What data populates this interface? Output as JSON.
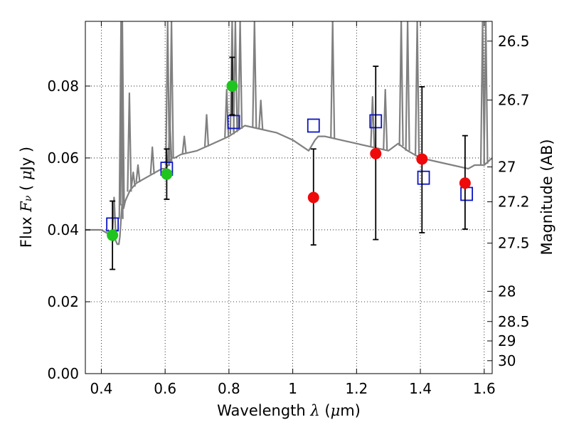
{
  "chart_data": {
    "type": "scatter",
    "xlabel": "Wavelength  λ (μm)",
    "xlabel_parts": [
      "Wavelength  ",
      "λ",
      " (",
      "μ",
      "m)"
    ],
    "ylabel": "Flux  Fν  ( μJy )",
    "ylabel_parts": [
      "Flux  ",
      "F",
      "ν",
      "  ( ",
      "μ",
      "Jy )"
    ],
    "y2label": "Magnitude (AB)",
    "xlim": [
      0.35,
      1.625
    ],
    "ylim": [
      0,
      0.098
    ],
    "grid": true,
    "colors": {
      "model": "#808080",
      "green": "#1fc41f",
      "red": "#ee0a0a",
      "box": "#0b14c2",
      "errorbar": "#000000"
    },
    "x_ticks": [
      {
        "value": 0.4,
        "label": "0.4"
      },
      {
        "value": 0.6,
        "label": "0.6"
      },
      {
        "value": 0.8,
        "label": "0.8"
      },
      {
        "value": 1.0,
        "label": "1"
      },
      {
        "value": 1.2,
        "label": "1.2"
      },
      {
        "value": 1.4,
        "label": "1.4"
      },
      {
        "value": 1.6,
        "label": "1.6"
      }
    ],
    "y_ticks": [
      {
        "value": 0.0,
        "label": "0.00"
      },
      {
        "value": 0.02,
        "label": "0.02"
      },
      {
        "value": 0.04,
        "label": "0.04"
      },
      {
        "value": 0.06,
        "label": "0.06"
      },
      {
        "value": 0.08,
        "label": "0.08"
      }
    ],
    "magnitude_ticks": [
      {
        "value": 0.0925,
        "label": "26.5"
      },
      {
        "value": 0.0761,
        "label": "26.7"
      },
      {
        "value": 0.0575,
        "label": "27"
      },
      {
        "value": 0.0478,
        "label": "27.2"
      },
      {
        "value": 0.0363,
        "label": "27.5"
      },
      {
        "value": 0.0229,
        "label": "28"
      },
      {
        "value": 0.0145,
        "label": "28.5"
      },
      {
        "value": 0.0091,
        "label": "29"
      },
      {
        "value": 0.0036,
        "label": "30"
      }
    ],
    "series": [
      {
        "name": "model spectrum",
        "style": "line",
        "x": [
          0.35,
          0.4,
          0.42,
          0.438,
          0.44,
          0.45,
          0.455,
          0.458,
          0.462,
          0.465,
          0.47,
          0.475,
          0.48,
          0.49,
          0.5,
          0.51,
          0.53,
          0.55,
          0.57,
          0.59,
          0.6,
          0.61,
          0.62,
          0.63,
          0.65,
          0.7,
          0.75,
          0.8,
          0.85,
          0.9,
          0.95,
          1.0,
          1.05,
          1.07,
          1.08,
          1.1,
          1.15,
          1.2,
          1.25,
          1.3,
          1.33,
          1.36,
          1.4,
          1.45,
          1.5,
          1.55,
          1.57,
          1.6,
          1.625
        ],
        "y": [
          0.04,
          0.04,
          0.039,
          0.037,
          0.038,
          0.036,
          0.036,
          0.038,
          0.043,
          0.047,
          0.046,
          0.048,
          0.049,
          0.051,
          0.052,
          0.053,
          0.054,
          0.055,
          0.056,
          0.057,
          0.057,
          0.058,
          0.06,
          0.06,
          0.061,
          0.062,
          0.064,
          0.066,
          0.069,
          0.068,
          0.067,
          0.065,
          0.062,
          0.065,
          0.066,
          0.066,
          0.065,
          0.064,
          0.063,
          0.062,
          0.064,
          0.062,
          0.06,
          0.059,
          0.058,
          0.057,
          0.058,
          0.058,
          0.06
        ],
        "spikes": [
          {
            "x": 0.44,
            "y": 0.049
          },
          {
            "x": 0.462,
            "y": 0.098
          },
          {
            "x": 0.466,
            "y": 0.098
          },
          {
            "x": 0.488,
            "y": 0.078
          },
          {
            "x": 0.5,
            "y": 0.056
          },
          {
            "x": 0.515,
            "y": 0.058
          },
          {
            "x": 0.56,
            "y": 0.063
          },
          {
            "x": 0.608,
            "y": 0.098
          },
          {
            "x": 0.615,
            "y": 0.07
          },
          {
            "x": 0.62,
            "y": 0.098
          },
          {
            "x": 0.66,
            "y": 0.066
          },
          {
            "x": 0.73,
            "y": 0.072
          },
          {
            "x": 0.793,
            "y": 0.079
          },
          {
            "x": 0.81,
            "y": 0.098
          },
          {
            "x": 0.82,
            "y": 0.098
          },
          {
            "x": 0.835,
            "y": 0.098
          },
          {
            "x": 0.88,
            "y": 0.098
          },
          {
            "x": 0.9,
            "y": 0.076
          },
          {
            "x": 1.125,
            "y": 0.098
          },
          {
            "x": 1.25,
            "y": 0.077
          },
          {
            "x": 1.29,
            "y": 0.079
          },
          {
            "x": 1.34,
            "y": 0.098
          },
          {
            "x": 1.36,
            "y": 0.098
          },
          {
            "x": 1.39,
            "y": 0.098
          },
          {
            "x": 1.595,
            "y": 0.098
          },
          {
            "x": 1.605,
            "y": 0.098
          }
        ]
      },
      {
        "name": "model photometry",
        "style": "open-square",
        "x": [
          0.435,
          0.605,
          0.815,
          1.065,
          1.26,
          1.41,
          1.545
        ],
        "y": [
          0.0415,
          0.057,
          0.07,
          0.069,
          0.0702,
          0.0545,
          0.05
        ]
      },
      {
        "name": "observed (green)",
        "style": "filled-circle",
        "x": [
          0.435,
          0.605,
          0.81
        ],
        "y": [
          0.0385,
          0.0555,
          0.08
        ],
        "yerr_low": [
          0.029,
          0.0485,
          0.072
        ],
        "yerr_high": [
          0.048,
          0.0625,
          0.088
        ]
      },
      {
        "name": "observed (red)",
        "style": "filled-circle",
        "x": [
          1.065,
          1.26,
          1.405,
          1.54
        ],
        "y": [
          0.049,
          0.0612,
          0.0597,
          0.053
        ],
        "yerr_low": [
          0.0358,
          0.0373,
          0.0392,
          0.0402
        ],
        "yerr_high": [
          0.0625,
          0.0855,
          0.0798,
          0.0662
        ]
      }
    ]
  }
}
